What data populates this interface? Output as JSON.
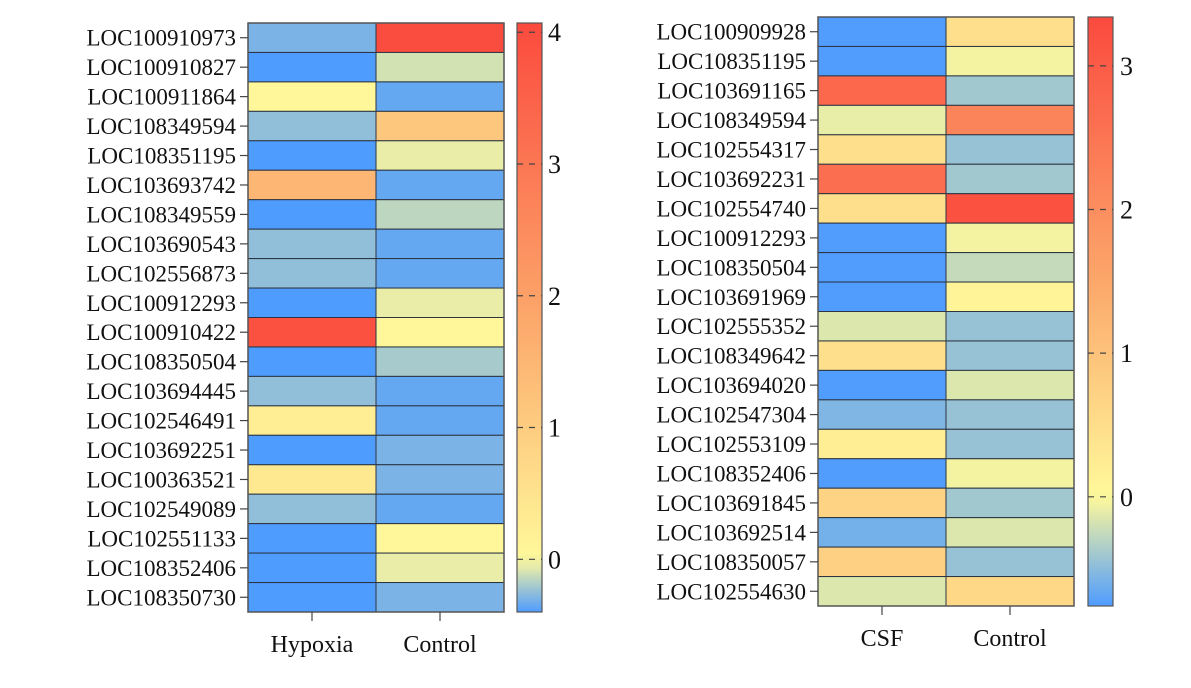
{
  "chart_data": [
    {
      "type": "heatmap",
      "title": "",
      "columns": [
        "Hypoxia",
        "Control"
      ],
      "rows": [
        "LOC100910973",
        "LOC100910827",
        "LOC100911864",
        "LOC108349594",
        "LOC108351195",
        "LOC103693742",
        "LOC108349559",
        "LOC103690543",
        "LOC102556873",
        "LOC100912293",
        "LOC100910422",
        "LOC108350504",
        "LOC103694445",
        "LOC102546491",
        "LOC103692251",
        "LOC100363521",
        "LOC102549089",
        "LOC102551133",
        "LOC108352406",
        "LOC108350730"
      ],
      "values": [
        [
          -0.3,
          4.0
        ],
        [
          -0.4,
          -0.1
        ],
        [
          0.05,
          -0.35
        ],
        [
          -0.25,
          1.1
        ],
        [
          -0.4,
          -0.05
        ],
        [
          1.5,
          -0.35
        ],
        [
          -0.4,
          -0.15
        ],
        [
          -0.25,
          -0.35
        ],
        [
          -0.25,
          -0.35
        ],
        [
          -0.4,
          -0.05
        ],
        [
          3.9,
          0.05
        ],
        [
          -0.4,
          -0.2
        ],
        [
          -0.25,
          -0.35
        ],
        [
          0.25,
          -0.35
        ],
        [
          -0.4,
          -0.3
        ],
        [
          0.35,
          -0.3
        ],
        [
          -0.25,
          -0.35
        ],
        [
          -0.4,
          0.05
        ],
        [
          -0.4,
          -0.05
        ],
        [
          -0.4,
          -0.3
        ]
      ],
      "colorbar": {
        "ticks": [
          "0",
          "1",
          "2",
          "3",
          "4"
        ],
        "tick_values": [
          0,
          1,
          2,
          3,
          4
        ],
        "range": [
          -0.4,
          4.07
        ]
      },
      "colormap": [
        "#4f9cff",
        "#fff99a",
        "#fca76b",
        "#fb4a3e"
      ]
    },
    {
      "type": "heatmap",
      "title": "",
      "columns": [
        "CSF",
        "Control"
      ],
      "rows": [
        "LOC100909928",
        "LOC108351195",
        "LOC103691165",
        "LOC108349594",
        "LOC102554317",
        "LOC103692231",
        "LOC102554740",
        "LOC100912293",
        "LOC108350504",
        "LOC103691969",
        "LOC102555352",
        "LOC108349642",
        "LOC103694020",
        "LOC102547304",
        "LOC102553109",
        "LOC108352406",
        "LOC103691845",
        "LOC103692514",
        "LOC108350057",
        "LOC102554630"
      ],
      "values": [
        [
          -0.75,
          0.45
        ],
        [
          -0.75,
          -0.05
        ],
        [
          2.75,
          -0.4
        ],
        [
          -0.1,
          2.2
        ],
        [
          0.45,
          -0.45
        ],
        [
          2.6,
          -0.4
        ],
        [
          0.45,
          3.2
        ],
        [
          -0.75,
          -0.05
        ],
        [
          -0.75,
          -0.25
        ],
        [
          -0.75,
          0.1
        ],
        [
          -0.15,
          -0.45
        ],
        [
          0.45,
          -0.45
        ],
        [
          -0.75,
          -0.15
        ],
        [
          -0.55,
          -0.45
        ],
        [
          0.2,
          -0.45
        ],
        [
          -0.75,
          -0.05
        ],
        [
          0.7,
          -0.4
        ],
        [
          -0.6,
          -0.15
        ],
        [
          0.75,
          -0.45
        ],
        [
          -0.15,
          0.6
        ]
      ],
      "colorbar": {
        "ticks": [
          "0",
          "1",
          "2",
          "3"
        ],
        "tick_values": [
          0,
          1,
          2,
          3
        ],
        "range": [
          -0.76,
          3.34
        ]
      },
      "colormap": [
        "#4f9cff",
        "#fff99a",
        "#fca76b",
        "#fb4a3e"
      ]
    }
  ]
}
